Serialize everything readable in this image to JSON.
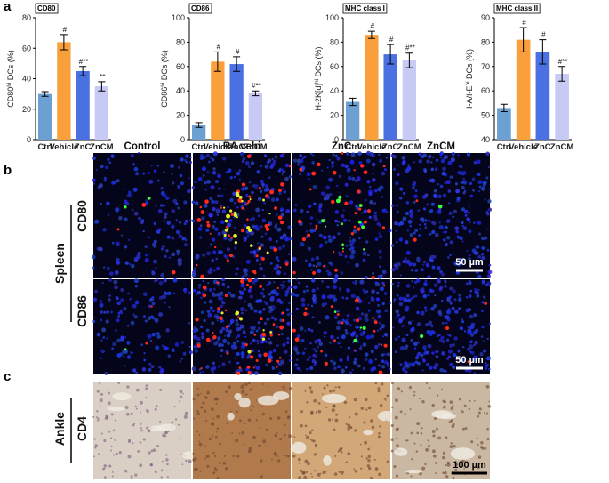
{
  "panel_labels": [
    "a",
    "b",
    "c"
  ],
  "chart_data": [
    {
      "type": "bar",
      "title": "CD80",
      "ylabel": [
        "CD80",
        "hi",
        " DCs (%)"
      ],
      "categories": [
        "Ctrl",
        "Vehicle",
        "ZnC",
        "ZnCM"
      ],
      "values": [
        30,
        64,
        45,
        35
      ],
      "errors": [
        1.5,
        5,
        3,
        3
      ],
      "annotations": [
        null,
        "#",
        "#**",
        "**"
      ],
      "colors": [
        "#6c9fd2",
        "#f9a03c",
        "#4a70e2",
        "#c8caf6"
      ],
      "ylim": [
        0,
        80
      ],
      "yticks": [
        0,
        20,
        40,
        60,
        80
      ]
    },
    {
      "type": "bar",
      "title": "CD86",
      "ylabel": [
        "CD86",
        "hi",
        " DCs (%)"
      ],
      "categories": [
        "Ctrl",
        "Vehicle",
        "ZnC",
        "ZnCM"
      ],
      "values": [
        12,
        64,
        62,
        38
      ],
      "errors": [
        2,
        8,
        6,
        2
      ],
      "annotations": [
        null,
        "#",
        "#",
        "#**"
      ],
      "colors": [
        "#6c9fd2",
        "#f9a03c",
        "#4a70e2",
        "#c8caf6"
      ],
      "ylim": [
        0,
        100
      ],
      "yticks": [
        0,
        20,
        40,
        60,
        80,
        100
      ]
    },
    {
      "type": "bar",
      "title": "MHC class I",
      "ylabel": [
        "H-2K[d]",
        "hi",
        " DCs (%)"
      ],
      "categories": [
        "Ctrl",
        "Vehicle",
        "ZnC",
        "ZnCM"
      ],
      "values": [
        31,
        86,
        70,
        65
      ],
      "errors": [
        3,
        3,
        8,
        6
      ],
      "annotations": [
        null,
        "#",
        "#",
        "#**"
      ],
      "colors": [
        "#6c9fd2",
        "#f9a03c",
        "#4a70e2",
        "#c8caf6"
      ],
      "ylim": [
        0,
        100
      ],
      "yticks": [
        0,
        20,
        40,
        60,
        80,
        100
      ]
    },
    {
      "type": "bar",
      "title": "MHC class II",
      "ylabel": [
        "I-A/I-E",
        "hi",
        " DCs (%)"
      ],
      "categories": [
        "Ctrl",
        "Vehicle",
        "ZnC",
        "ZnCM"
      ],
      "values": [
        53,
        81,
        76,
        67
      ],
      "errors": [
        1.5,
        5,
        5,
        3
      ],
      "annotations": [
        null,
        "#",
        "#",
        "#**"
      ],
      "colors": [
        "#6c9fd2",
        "#f9a03c",
        "#4a70e2",
        "#c8caf6"
      ],
      "ylim": [
        40,
        90
      ],
      "yticks": [
        40,
        50,
        60,
        70,
        80,
        90
      ]
    }
  ],
  "panel_b": {
    "columns": [
      "Control",
      "RA vehi",
      "ZnC",
      "ZnCM"
    ],
    "group": "Spleen",
    "rows": [
      "CD80",
      "CD86"
    ],
    "scale_bar": "50 µm"
  },
  "panel_c": {
    "tissue": "Ankle",
    "stain": "CD4",
    "scale_bar": "100 µm"
  }
}
